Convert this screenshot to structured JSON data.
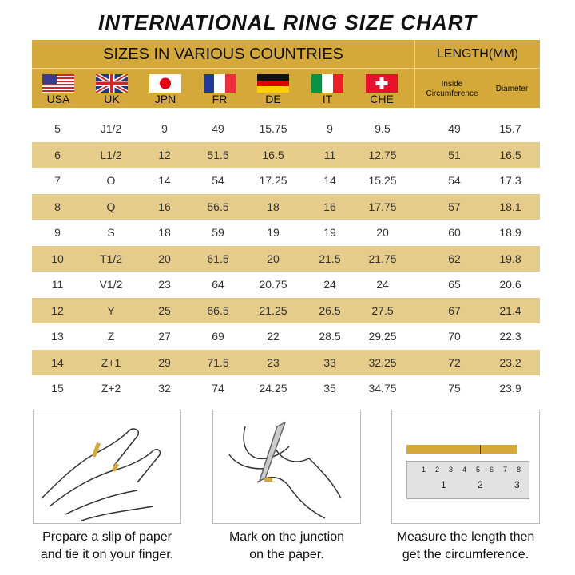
{
  "title": "INTERNATIONAL RING SIZE CHART",
  "header": {
    "sizes": "SIZES IN VARIOUS COUNTRIES",
    "length": "LENGTH(MM)",
    "countries": [
      "USA",
      "UK",
      "JPN",
      "FR",
      "DE",
      "IT",
      "CHE"
    ],
    "inside": "Inside",
    "circumference": "Circumference",
    "diameter": "Diameter"
  },
  "rows": [
    [
      "5",
      "J1/2",
      "9",
      "49",
      "15.75",
      "9",
      "9.5",
      "49",
      "15.7"
    ],
    [
      "6",
      "L1/2",
      "12",
      "51.5",
      "16.5",
      "11",
      "12.75",
      "51",
      "16.5"
    ],
    [
      "7",
      "O",
      "14",
      "54",
      "17.25",
      "14",
      "15.25",
      "54",
      "17.3"
    ],
    [
      "8",
      "Q",
      "16",
      "56.5",
      "18",
      "16",
      "17.75",
      "57",
      "18.1"
    ],
    [
      "9",
      "S",
      "18",
      "59",
      "19",
      "19",
      "20",
      "60",
      "18.9"
    ],
    [
      "10",
      "T1/2",
      "20",
      "61.5",
      "20",
      "21.5",
      "21.75",
      "62",
      "19.8"
    ],
    [
      "11",
      "V1/2",
      "23",
      "64",
      "20.75",
      "24",
      "24",
      "65",
      "20.6"
    ],
    [
      "12",
      "Y",
      "25",
      "66.5",
      "21.25",
      "26.5",
      "27.5",
      "67",
      "21.4"
    ],
    [
      "13",
      "Z",
      "27",
      "69",
      "22",
      "28.5",
      "29.25",
      "70",
      "22.3"
    ],
    [
      "14",
      "Z+1",
      "29",
      "71.5",
      "23",
      "33",
      "32.25",
      "72",
      "23.2"
    ],
    [
      "15",
      "Z+2",
      "32",
      "74",
      "24.25",
      "35",
      "34.75",
      "75",
      "23.9"
    ]
  ],
  "steps": [
    {
      "line1": "Prepare a slip of paper",
      "line2": "and tie it on your finger."
    },
    {
      "line1": "Mark on the junction",
      "line2": "on the paper."
    },
    {
      "line1": "Measure the length then",
      "line2": "get the circumference."
    }
  ],
  "ruler": {
    "top": [
      "1",
      "2",
      "3",
      "4",
      "5",
      "6",
      "7",
      "8"
    ],
    "bottom": [
      "1",
      "2",
      "3"
    ]
  },
  "colors": {
    "header": "#d4a93a",
    "row_alt": "#e6cc8a"
  }
}
